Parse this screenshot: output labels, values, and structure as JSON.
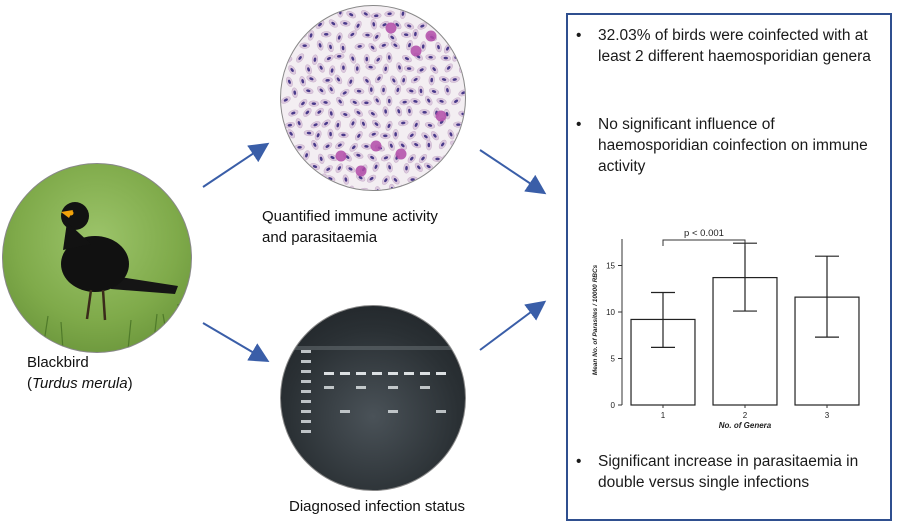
{
  "bird": {
    "name": "Blackbird",
    "latin": "Turdus merula",
    "open_paren": "(",
    "close_paren": ")"
  },
  "captions": {
    "smear_line1": "Quantified immune activity",
    "smear_line2": "and parasitaemia",
    "gel": "Diagnosed infection status"
  },
  "summary": {
    "bullets": [
      "32.03% of birds were coinfected with at least 2 different haemosporidian genera",
      "No significant influence of haemosporidian coinfection on immune activity",
      "Significant increase in parasitaemia in double versus single infections"
    ],
    "bullet_symbol": "•"
  },
  "colors": {
    "arrow": "#3a5ea8",
    "box_border": "#2f4f8f",
    "bar_fill": "#ffffff",
    "bar_stroke": "#222222"
  },
  "chart_data": {
    "type": "bar",
    "categories": [
      "1",
      "2",
      "3"
    ],
    "values": [
      9.2,
      13.7,
      11.6
    ],
    "error_low": [
      6.2,
      10.1,
      7.3
    ],
    "error_high": [
      12.1,
      17.4,
      16.0
    ],
    "xlabel": "No. of Genera",
    "ylabel": "Mean No. of Parasites / 10000 RBCs",
    "ylim": [
      0,
      20
    ],
    "yticks": [
      0,
      5,
      10,
      15
    ],
    "annotation": "p < 0.001",
    "annotation_between": [
      "1",
      "2"
    ],
    "grid": false
  }
}
